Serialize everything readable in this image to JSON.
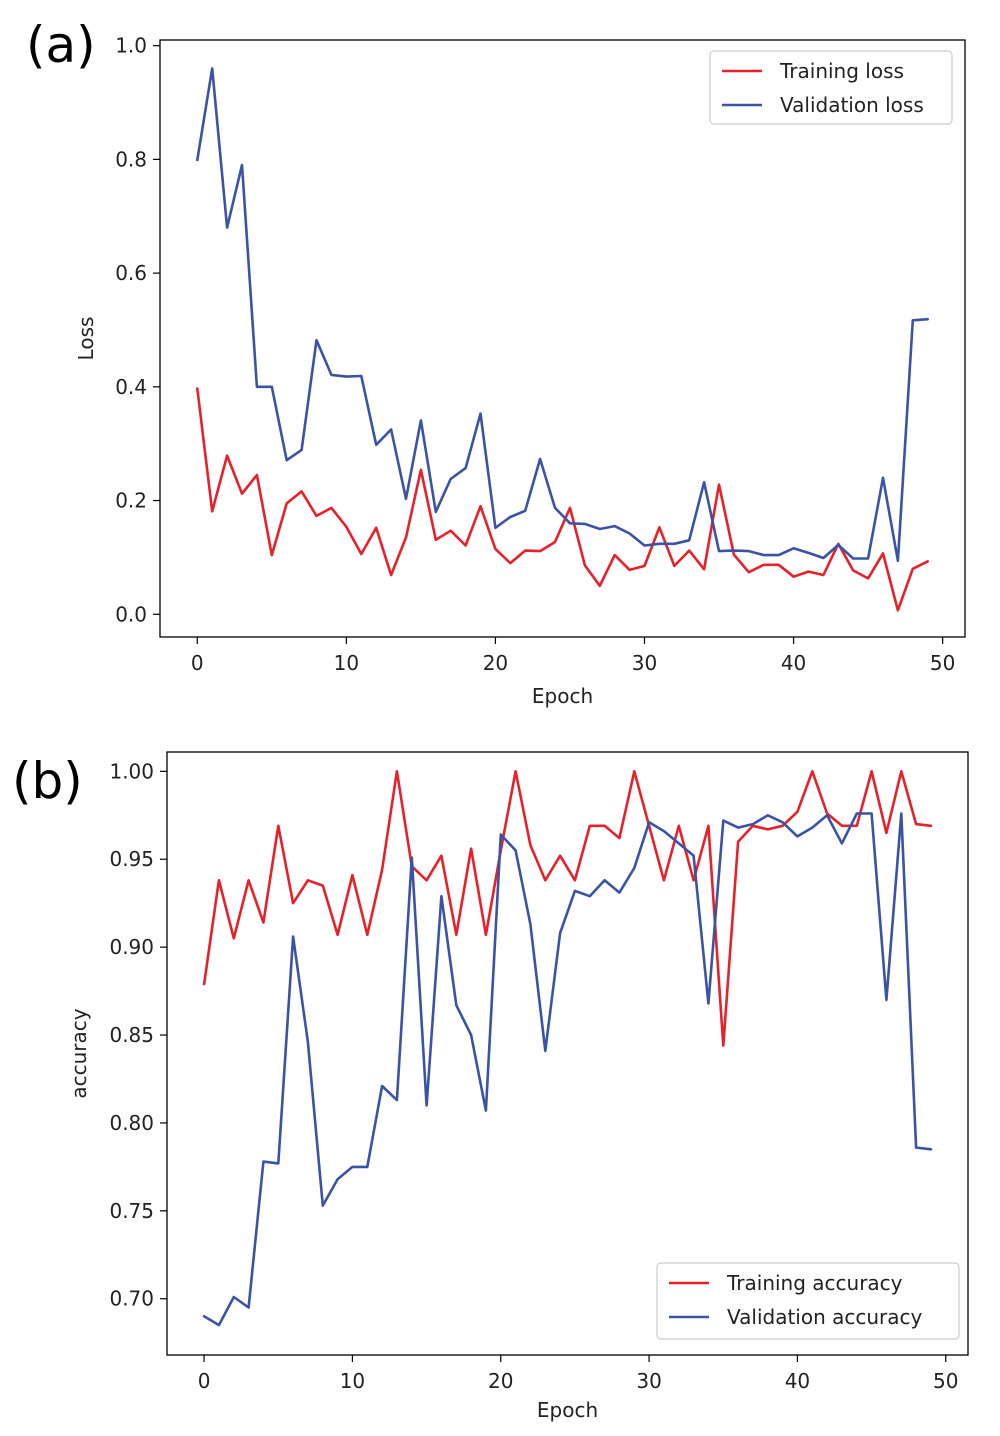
{
  "panels": [
    {
      "letter": "(a)"
    },
    {
      "letter": "(b)"
    }
  ],
  "chart_data": [
    {
      "type": "line",
      "xlabel": "Epoch",
      "ylabel": "Loss",
      "xlim": [
        -2.5,
        51.5
      ],
      "ylim": [
        -0.04,
        1.01
      ],
      "xticks": [
        0,
        10,
        20,
        30,
        40,
        50
      ],
      "xtick_labels": [
        "0",
        "10",
        "20",
        "30",
        "40",
        "50"
      ],
      "yticks": [
        0.0,
        0.2,
        0.4,
        0.6,
        0.8,
        1.0
      ],
      "ytick_labels": [
        "0.0",
        "0.2",
        "0.4",
        "0.6",
        "0.8",
        "1.0"
      ],
      "grid": false,
      "legend_position": "top-right",
      "series": [
        {
          "name": "Training loss",
          "color": "#e8202a",
          "x": [
            0,
            1,
            2,
            3,
            4,
            5,
            6,
            7,
            8,
            9,
            10,
            11,
            12,
            13,
            14,
            15,
            16,
            17,
            18,
            19,
            20,
            21,
            22,
            23,
            24,
            25,
            26,
            27,
            28,
            29,
            30,
            31,
            32,
            33,
            34,
            35,
            36,
            37,
            38,
            39,
            40,
            41,
            42,
            43,
            44,
            45,
            46,
            47,
            48,
            49
          ],
          "values": [
            0.397,
            0.181,
            0.279,
            0.212,
            0.245,
            0.104,
            0.195,
            0.216,
            0.173,
            0.187,
            0.154,
            0.106,
            0.152,
            0.069,
            0.135,
            0.254,
            0.131,
            0.147,
            0.121,
            0.19,
            0.115,
            0.09,
            0.112,
            0.111,
            0.127,
            0.187,
            0.086,
            0.05,
            0.104,
            0.078,
            0.085,
            0.153,
            0.085,
            0.112,
            0.079,
            0.228,
            0.105,
            0.074,
            0.087,
            0.087,
            0.066,
            0.075,
            0.069,
            0.124,
            0.077,
            0.063,
            0.107,
            0.007,
            0.08,
            0.093
          ]
        },
        {
          "name": "Validation loss",
          "color": "#3b53a4",
          "x": [
            0,
            1,
            2,
            3,
            4,
            5,
            6,
            7,
            8,
            9,
            10,
            11,
            12,
            13,
            14,
            15,
            16,
            17,
            18,
            19,
            20,
            21,
            22,
            23,
            24,
            25,
            26,
            27,
            28,
            29,
            30,
            31,
            32,
            33,
            34,
            35,
            36,
            37,
            38,
            39,
            40,
            41,
            42,
            43,
            44,
            45,
            46,
            47,
            48,
            49
          ],
          "values": [
            0.799,
            0.96,
            0.68,
            0.79,
            0.4,
            0.4,
            0.271,
            0.289,
            0.482,
            0.421,
            0.418,
            0.419,
            0.298,
            0.325,
            0.203,
            0.341,
            0.18,
            0.238,
            0.257,
            0.353,
            0.152,
            0.171,
            0.182,
            0.273,
            0.187,
            0.16,
            0.159,
            0.15,
            0.155,
            0.142,
            0.121,
            0.124,
            0.124,
            0.13,
            0.232,
            0.111,
            0.112,
            0.111,
            0.104,
            0.104,
            0.116,
            0.108,
            0.099,
            0.122,
            0.098,
            0.098,
            0.24,
            0.094,
            0.517,
            0.519
          ]
        }
      ]
    },
    {
      "type": "line",
      "xlabel": "Epoch",
      "ylabel": "accuracy",
      "xlim": [
        -2.5,
        51.5
      ],
      "ylim": [
        0.668,
        1.011
      ],
      "xticks": [
        0,
        10,
        20,
        30,
        40,
        50
      ],
      "xtick_labels": [
        "0",
        "10",
        "20",
        "30",
        "40",
        "50"
      ],
      "yticks": [
        0.7,
        0.75,
        0.8,
        0.85,
        0.9,
        0.95,
        1.0
      ],
      "ytick_labels": [
        "0.70",
        "0.75",
        "0.80",
        "0.85",
        "0.90",
        "0.95",
        "1.00"
      ],
      "grid": false,
      "legend_position": "bottom-right",
      "series": [
        {
          "name": "Training accuracy",
          "color": "#e8202a",
          "x": [
            0,
            1,
            2,
            3,
            4,
            5,
            6,
            7,
            8,
            9,
            10,
            11,
            12,
            13,
            14,
            15,
            16,
            17,
            18,
            19,
            20,
            21,
            22,
            23,
            24,
            25,
            26,
            27,
            28,
            29,
            30,
            31,
            32,
            33,
            34,
            35,
            36,
            37,
            38,
            39,
            40,
            41,
            42,
            43,
            44,
            45,
            46,
            47,
            48,
            49
          ],
          "values": [
            0.879,
            0.938,
            0.905,
            0.938,
            0.914,
            0.969,
            0.925,
            0.938,
            0.935,
            0.907,
            0.941,
            0.907,
            0.944,
            1.0,
            0.946,
            0.938,
            0.952,
            0.907,
            0.956,
            0.907,
            0.955,
            1.0,
            0.958,
            0.938,
            0.952,
            0.938,
            0.969,
            0.969,
            0.962,
            1.0,
            0.969,
            0.938,
            0.969,
            0.938,
            0.969,
            0.844,
            0.96,
            0.969,
            0.967,
            0.969,
            0.977,
            1.0,
            0.976,
            0.969,
            0.969,
            1.0,
            0.965,
            1.0,
            0.97,
            0.969
          ]
        },
        {
          "name": "Validation accuracy",
          "color": "#3b53a4",
          "x": [
            0,
            1,
            2,
            3,
            4,
            5,
            6,
            7,
            8,
            9,
            10,
            11,
            12,
            13,
            14,
            15,
            16,
            17,
            18,
            19,
            20,
            21,
            22,
            23,
            24,
            25,
            26,
            27,
            28,
            29,
            30,
            31,
            32,
            33,
            34,
            35,
            36,
            37,
            38,
            39,
            40,
            41,
            42,
            43,
            44,
            45,
            46,
            47,
            48,
            49
          ],
          "values": [
            0.69,
            0.685,
            0.701,
            0.695,
            0.778,
            0.777,
            0.906,
            0.846,
            0.753,
            0.768,
            0.775,
            0.775,
            0.821,
            0.813,
            0.951,
            0.81,
            0.929,
            0.867,
            0.85,
            0.807,
            0.964,
            0.955,
            0.913,
            0.841,
            0.908,
            0.932,
            0.929,
            0.938,
            0.931,
            0.945,
            0.971,
            0.966,
            0.959,
            0.952,
            0.868,
            0.972,
            0.968,
            0.97,
            0.975,
            0.971,
            0.963,
            0.968,
            0.975,
            0.959,
            0.976,
            0.976,
            0.87,
            0.976,
            0.786,
            0.785
          ]
        }
      ]
    }
  ]
}
